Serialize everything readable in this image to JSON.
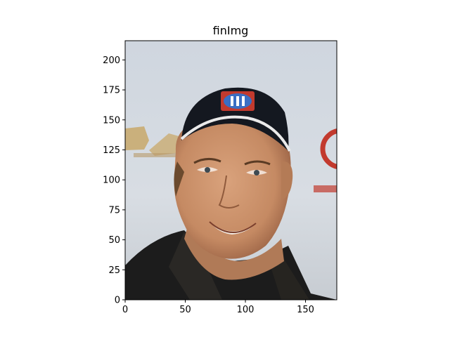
{
  "figure": {
    "title": "finImg"
  },
  "image": {
    "description_icon": "portrait-photo-icon",
    "width_units": 176,
    "height_units": 216
  },
  "axes": {
    "x_ticks": [
      "0",
      "50",
      "100",
      "150"
    ],
    "y_ticks": [
      "0",
      "25",
      "50",
      "75",
      "100",
      "125",
      "150",
      "175",
      "200"
    ],
    "xlim": [
      0,
      176
    ],
    "ylim": [
      0,
      216
    ]
  },
  "colors": {
    "background": "#ffffff",
    "backdrop": "#d4d9e0",
    "skin": "#c9906c",
    "cap": "#141820",
    "jacket": "#1c1c1c",
    "logo_red": "#c23a2e",
    "logo_blue": "#3a6fc4",
    "banner_gold": "#c8a86a"
  }
}
